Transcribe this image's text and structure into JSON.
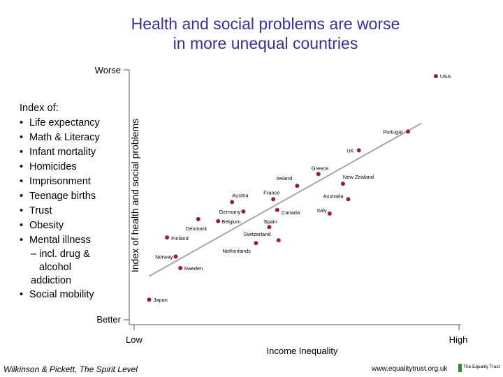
{
  "title_lines": [
    "Health and social problems are worse",
    "in more unequal countries"
  ],
  "index": {
    "heading": "Index of:",
    "items": [
      "Life expectancy",
      "Math & Literacy",
      "Infant mortality",
      "Homicides",
      "Imprisonment",
      "Teenage births",
      "Trust",
      "Obesity",
      "Mental illness"
    ],
    "mental_sub": [
      "– incl. drug &",
      "alcohol",
      "addiction"
    ],
    "last_item": "Social mobility"
  },
  "chart_data": {
    "type": "scatter",
    "title": "Health and social problems are worse in more unequal countries",
    "xlabel": "Income Inequality",
    "ylabel": "Index of health and social problems",
    "x_tick_labels": [
      "Low",
      "High"
    ],
    "y_tick_labels": [
      "Better",
      "Worse"
    ],
    "xlim": [
      0,
      1
    ],
    "ylim": [
      0,
      1
    ],
    "trend_line": {
      "x": [
        0.06,
        0.88
      ],
      "y": [
        0.19,
        0.79
      ]
    },
    "points": [
      {
        "label": "USA",
        "x": 0.924,
        "y": 0.975
      },
      {
        "label": "Portugal",
        "x": 0.84,
        "y": 0.758
      },
      {
        "label": "UK",
        "x": 0.692,
        "y": 0.684
      },
      {
        "label": "Greece",
        "x": 0.57,
        "y": 0.591
      },
      {
        "label": "New Zealand",
        "x": 0.644,
        "y": 0.553
      },
      {
        "label": "Ireland",
        "x": 0.506,
        "y": 0.545
      },
      {
        "label": "France",
        "x": 0.434,
        "y": 0.492
      },
      {
        "label": "Australia",
        "x": 0.66,
        "y": 0.492
      },
      {
        "label": "Austria",
        "x": 0.31,
        "y": 0.481
      },
      {
        "label": "Canada",
        "x": 0.446,
        "y": 0.45
      },
      {
        "label": "Germany",
        "x": 0.344,
        "y": 0.444
      },
      {
        "label": "Italy",
        "x": 0.604,
        "y": 0.436
      },
      {
        "label": "Denmark",
        "x": 0.208,
        "y": 0.414
      },
      {
        "label": "Belgium",
        "x": 0.268,
        "y": 0.406
      },
      {
        "label": "Spain",
        "x": 0.422,
        "y": 0.383
      },
      {
        "label": "Finland",
        "x": 0.114,
        "y": 0.342
      },
      {
        "label": "Switzerland",
        "x": 0.45,
        "y": 0.331
      },
      {
        "label": "Netherlands",
        "x": 0.382,
        "y": 0.32
      },
      {
        "label": "Norway",
        "x": 0.14,
        "y": 0.267
      },
      {
        "label": "Sweden",
        "x": 0.154,
        "y": 0.222
      },
      {
        "label": "Japan",
        "x": 0.06,
        "y": 0.098
      }
    ],
    "colors": {
      "point": "#9b1b3a",
      "trend": "#a6a6a6",
      "axis": "#555555",
      "title": "#333399"
    }
  },
  "footer": {
    "citation": "Wilkinson & Pickett, The Spirit Level",
    "url": "www.equalitytrust.org.uk",
    "logo_text": "The Equality Trust"
  }
}
